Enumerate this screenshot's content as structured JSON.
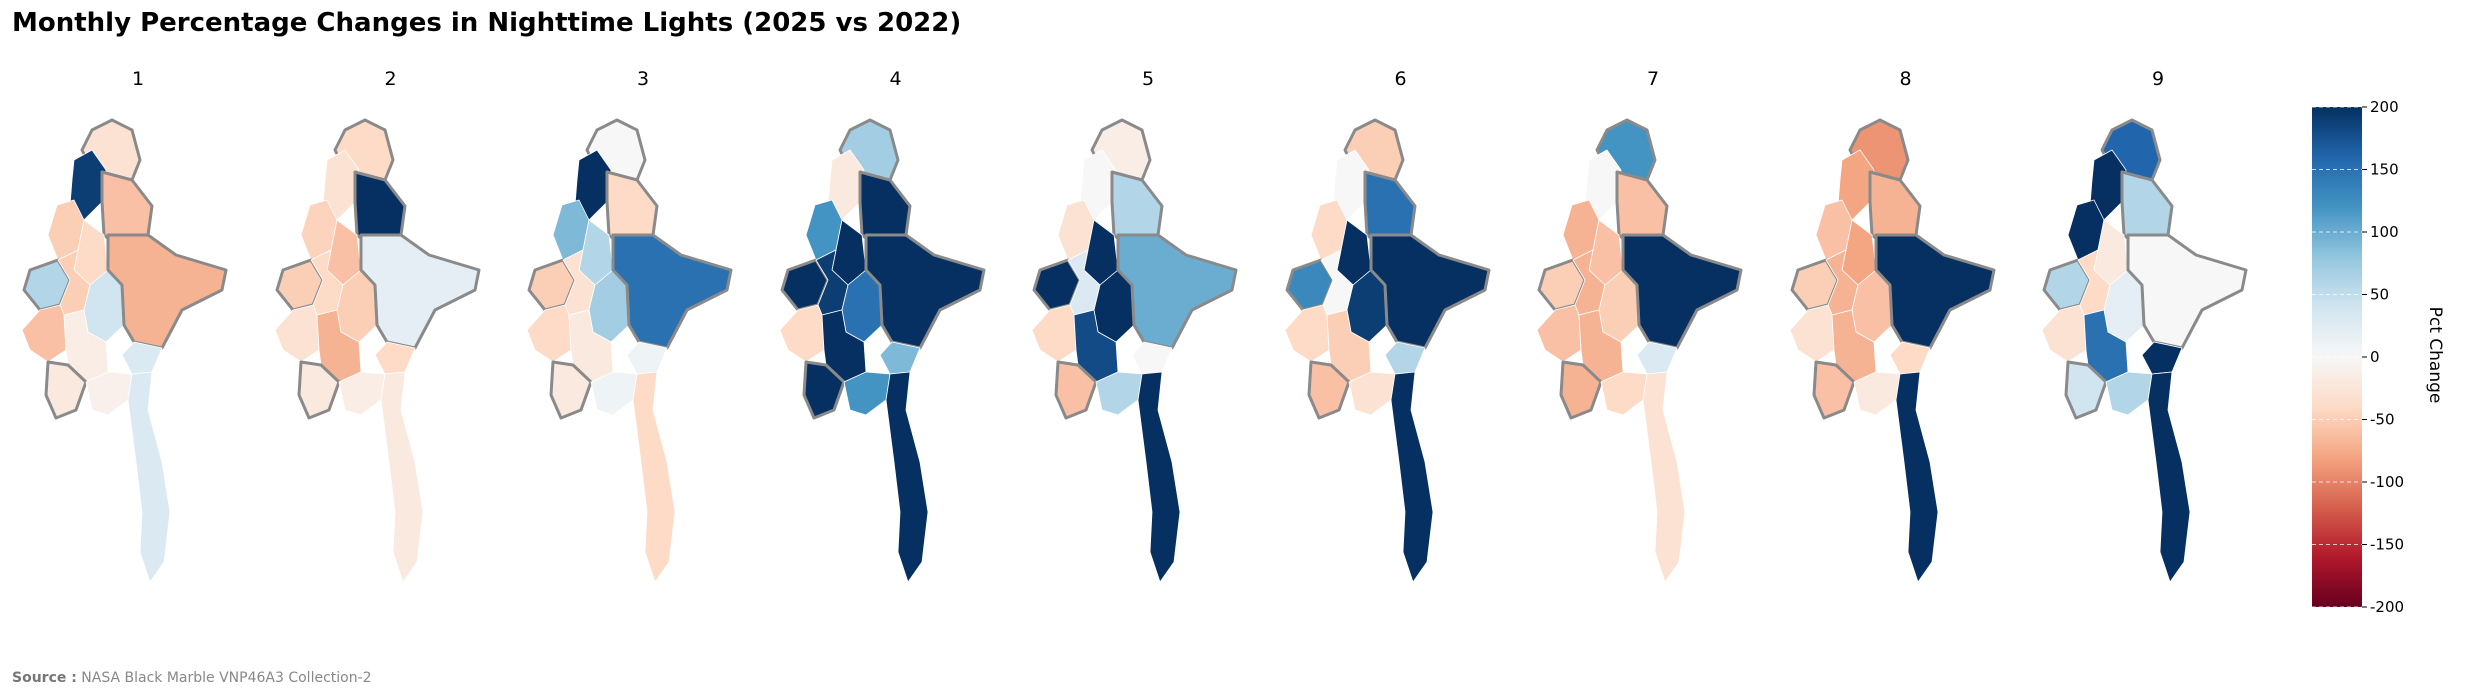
{
  "title": "Monthly Percentage Changes in Nighttime Lights (2025 vs 2022)",
  "panels": [
    {
      "label": "1",
      "states": [
        -30,
        190,
        -60,
        -50,
        -40,
        60,
        -50,
        40,
        -60,
        -15,
        -70,
        30,
        -20,
        -10,
        30
      ]
    },
    {
      "label": "2",
      "states": [
        -40,
        -30,
        200,
        -45,
        -60,
        -50,
        -40,
        -50,
        -30,
        -70,
        20,
        -40,
        -20,
        -15,
        -20
      ]
    },
    {
      "label": "3",
      "states": [
        0,
        200,
        -40,
        90,
        60,
        -50,
        -30,
        70,
        -40,
        -20,
        150,
        10,
        -20,
        10,
        -40
      ]
    },
    {
      "label": "4",
      "states": [
        70,
        -20,
        200,
        120,
        200,
        200,
        190,
        150,
        -40,
        200,
        200,
        90,
        200,
        120,
        200
      ]
    },
    {
      "label": "5",
      "states": [
        -15,
        0,
        60,
        -30,
        200,
        200,
        30,
        200,
        -40,
        180,
        100,
        0,
        -60,
        60,
        200
      ]
    },
    {
      "label": "6",
      "states": [
        -50,
        0,
        150,
        -40,
        200,
        130,
        0,
        190,
        -40,
        -50,
        200,
        60,
        -60,
        -30,
        200
      ]
    },
    {
      "label": "7",
      "states": [
        120,
        0,
        -60,
        -70,
        -60,
        -50,
        -70,
        -50,
        -60,
        -70,
        200,
        30,
        -70,
        -40,
        -30
      ]
    },
    {
      "label": "8",
      "states": [
        -90,
        -80,
        -70,
        -60,
        -80,
        -50,
        -70,
        -60,
        -30,
        -70,
        200,
        -40,
        -60,
        -20,
        200
      ]
    },
    {
      "label": "9",
      "states": [
        160,
        200,
        60,
        200,
        -20,
        60,
        -40,
        20,
        -30,
        150,
        0,
        200,
        40,
        60,
        200
      ]
    }
  ],
  "colorbar": {
    "label": "Pct Change",
    "min": -200,
    "max": 200,
    "ticks": [
      200,
      150,
      100,
      50,
      0,
      -50,
      -100,
      -150,
      -200
    ],
    "colors": [
      "#67001f",
      "#b2182b",
      "#d6604d",
      "#f4a582",
      "#fddbc7",
      "#f7f7f7",
      "#d1e5f0",
      "#92c5de",
      "#4393c3",
      "#2166ac",
      "#053061"
    ]
  },
  "source": {
    "key": "Source :",
    "text": "NASA Black Marble VNP46A3 Collection-2"
  },
  "border_color": "#8a8a8a"
}
